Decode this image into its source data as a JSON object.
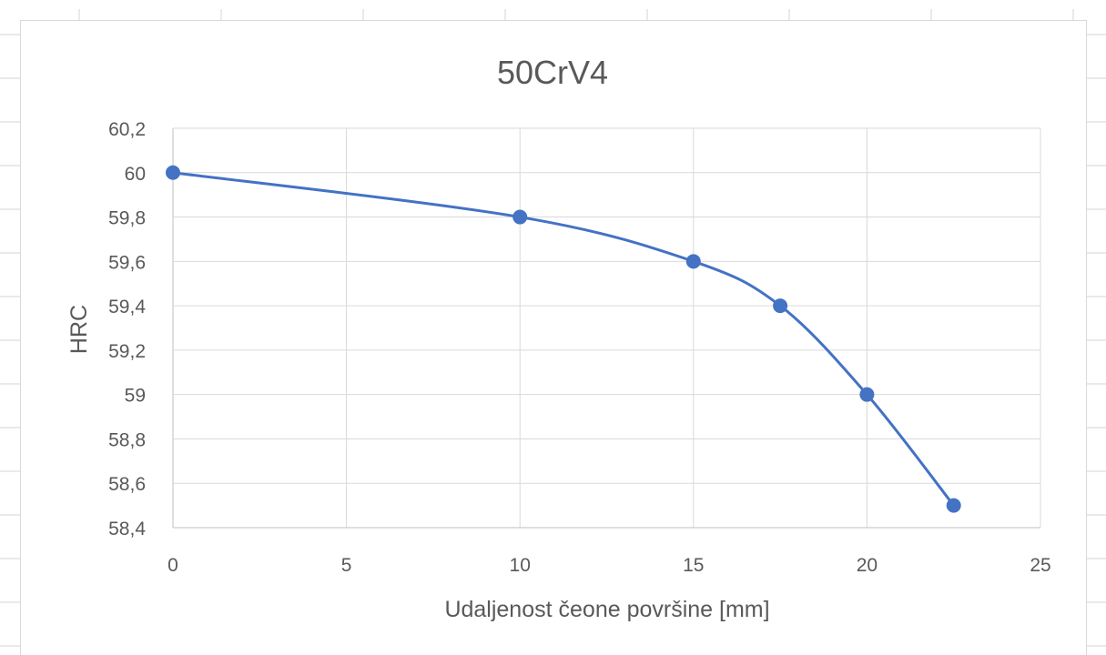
{
  "chart_data": {
    "type": "scatter",
    "title": "50CrV4",
    "xlabel": "Udaljenost čeone površine [mm]",
    "ylabel": "HRC",
    "x_ticks": [
      "0",
      "5",
      "10",
      "15",
      "20",
      "25"
    ],
    "y_ticks": [
      "58,4",
      "58,6",
      "58,8",
      "59",
      "59,2",
      "59,4",
      "59,6",
      "59,8",
      "60",
      "60,2"
    ],
    "xlim": [
      0,
      25
    ],
    "ylim": [
      58.4,
      60.2
    ],
    "grid": true,
    "legend": "none",
    "smooth_line": true,
    "series": [
      {
        "color": "#4472c4",
        "x": [
          0,
          10,
          15,
          17.5,
          20,
          22.5
        ],
        "y": [
          60,
          59.8,
          59.6,
          59.4,
          59.0,
          58.5
        ]
      }
    ]
  }
}
